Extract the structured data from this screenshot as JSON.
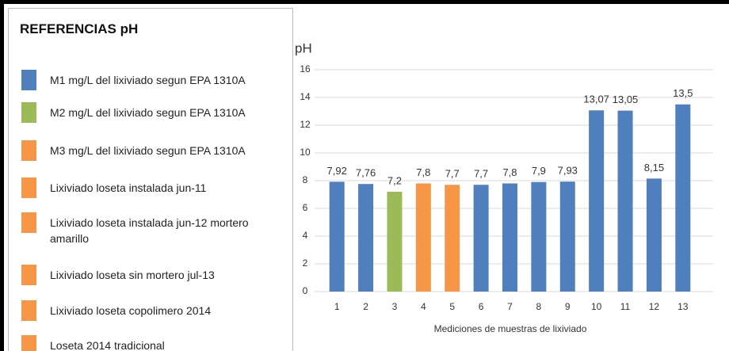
{
  "chart_data": {
    "type": "bar",
    "ylabel": "pH",
    "xlabel": "Mediciones de muestras de lixiviado",
    "categories": [
      "1",
      "2",
      "3",
      "4",
      "5",
      "6",
      "7",
      "8",
      "9",
      "10",
      "11",
      "12",
      "13"
    ],
    "values": [
      7.92,
      7.76,
      7.2,
      7.8,
      7.7,
      7.7,
      7.8,
      7.9,
      7.93,
      13.07,
      13.05,
      8.15,
      13.5
    ],
    "value_labels": [
      "7,92",
      "7,76",
      "7,2",
      "7,8",
      "7,7",
      "7,7",
      "7,8",
      "7,9",
      "7,93",
      "13,07",
      "13,05",
      "8,15",
      "13,5"
    ],
    "colors": [
      "#4f7fbd",
      "#4f7fbd",
      "#9bbb59",
      "#f79646",
      "#f79646",
      "#4f7fbd",
      "#4f7fbd",
      "#4f7fbd",
      "#4f7fbd",
      "#4f7fbd",
      "#4f7fbd",
      "#4f7fbd",
      "#4f7fbd"
    ],
    "ylim": [
      0,
      16
    ],
    "yticks": [
      0,
      2,
      4,
      6,
      8,
      10,
      12,
      14,
      16
    ],
    "grid": true,
    "legend": {
      "title": "REFERENCIAS pH",
      "items": [
        {
          "label": "M1 mg/L del lixiviado segun EPA 1310A",
          "color": "#4f7fbd"
        },
        {
          "label": "M2 mg/L del lixiviado segun EPA 1310A",
          "color": "#9bbb59"
        },
        {
          "label": "M3 mg/L del lixiviado segun EPA 1310A",
          "color": "#f79646"
        },
        {
          "label": "Lixiviado loseta instalada jun-11",
          "color": "#f79646"
        },
        {
          "label": "Lixiviado loseta instalada jun-12 mortero amarillo",
          "color": "#f79646"
        },
        {
          "label": "Lixiviado loseta sin mortero jul-13",
          "color": "#f79646"
        },
        {
          "label": "Lixiviado loseta copolimero 2014",
          "color": "#f79646"
        },
        {
          "label": "Loseta 2014 tradicional",
          "color": "#f79646"
        }
      ]
    }
  }
}
